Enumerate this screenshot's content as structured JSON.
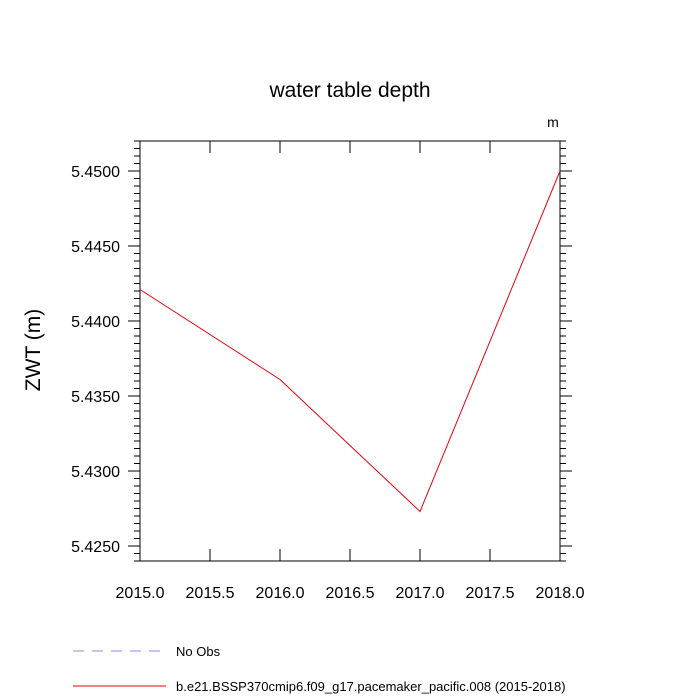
{
  "chart_data": {
    "type": "line",
    "title": "water table depth",
    "units_label": "m",
    "xlabel": "",
    "ylabel": "ZWT  (m)",
    "xlim": [
      2015.0,
      2018.0
    ],
    "ylim": [
      5.424,
      5.452
    ],
    "x_ticks": [
      "2015.0",
      "2015.5",
      "2016.0",
      "2016.5",
      "2017.0",
      "2017.5",
      "2018.0"
    ],
    "y_ticks": [
      "5.4250",
      "5.4300",
      "5.4350",
      "5.4400",
      "5.4450",
      "5.4500"
    ],
    "grid": false,
    "series": [
      {
        "name": "b.e21.BSSP370cmip6.f09_g17.pacemaker_pacific.008 (2015-2018)",
        "color": "#e8000b",
        "style": "solid",
        "x": [
          2015.0,
          2016.0,
          2017.0,
          2018.0
        ],
        "y": [
          5.4421,
          5.4361,
          5.4273,
          5.45
        ]
      }
    ],
    "legend": [
      {
        "label": "No Obs",
        "color": "#8a8af0",
        "style": "dashed"
      },
      {
        "label": "b.e21.BSSP370cmip6.f09_g17.pacemaker_pacific.008 (2015-2018)",
        "color": "#e8000b",
        "style": "solid"
      }
    ],
    "legend_position": "bottom-left"
  }
}
